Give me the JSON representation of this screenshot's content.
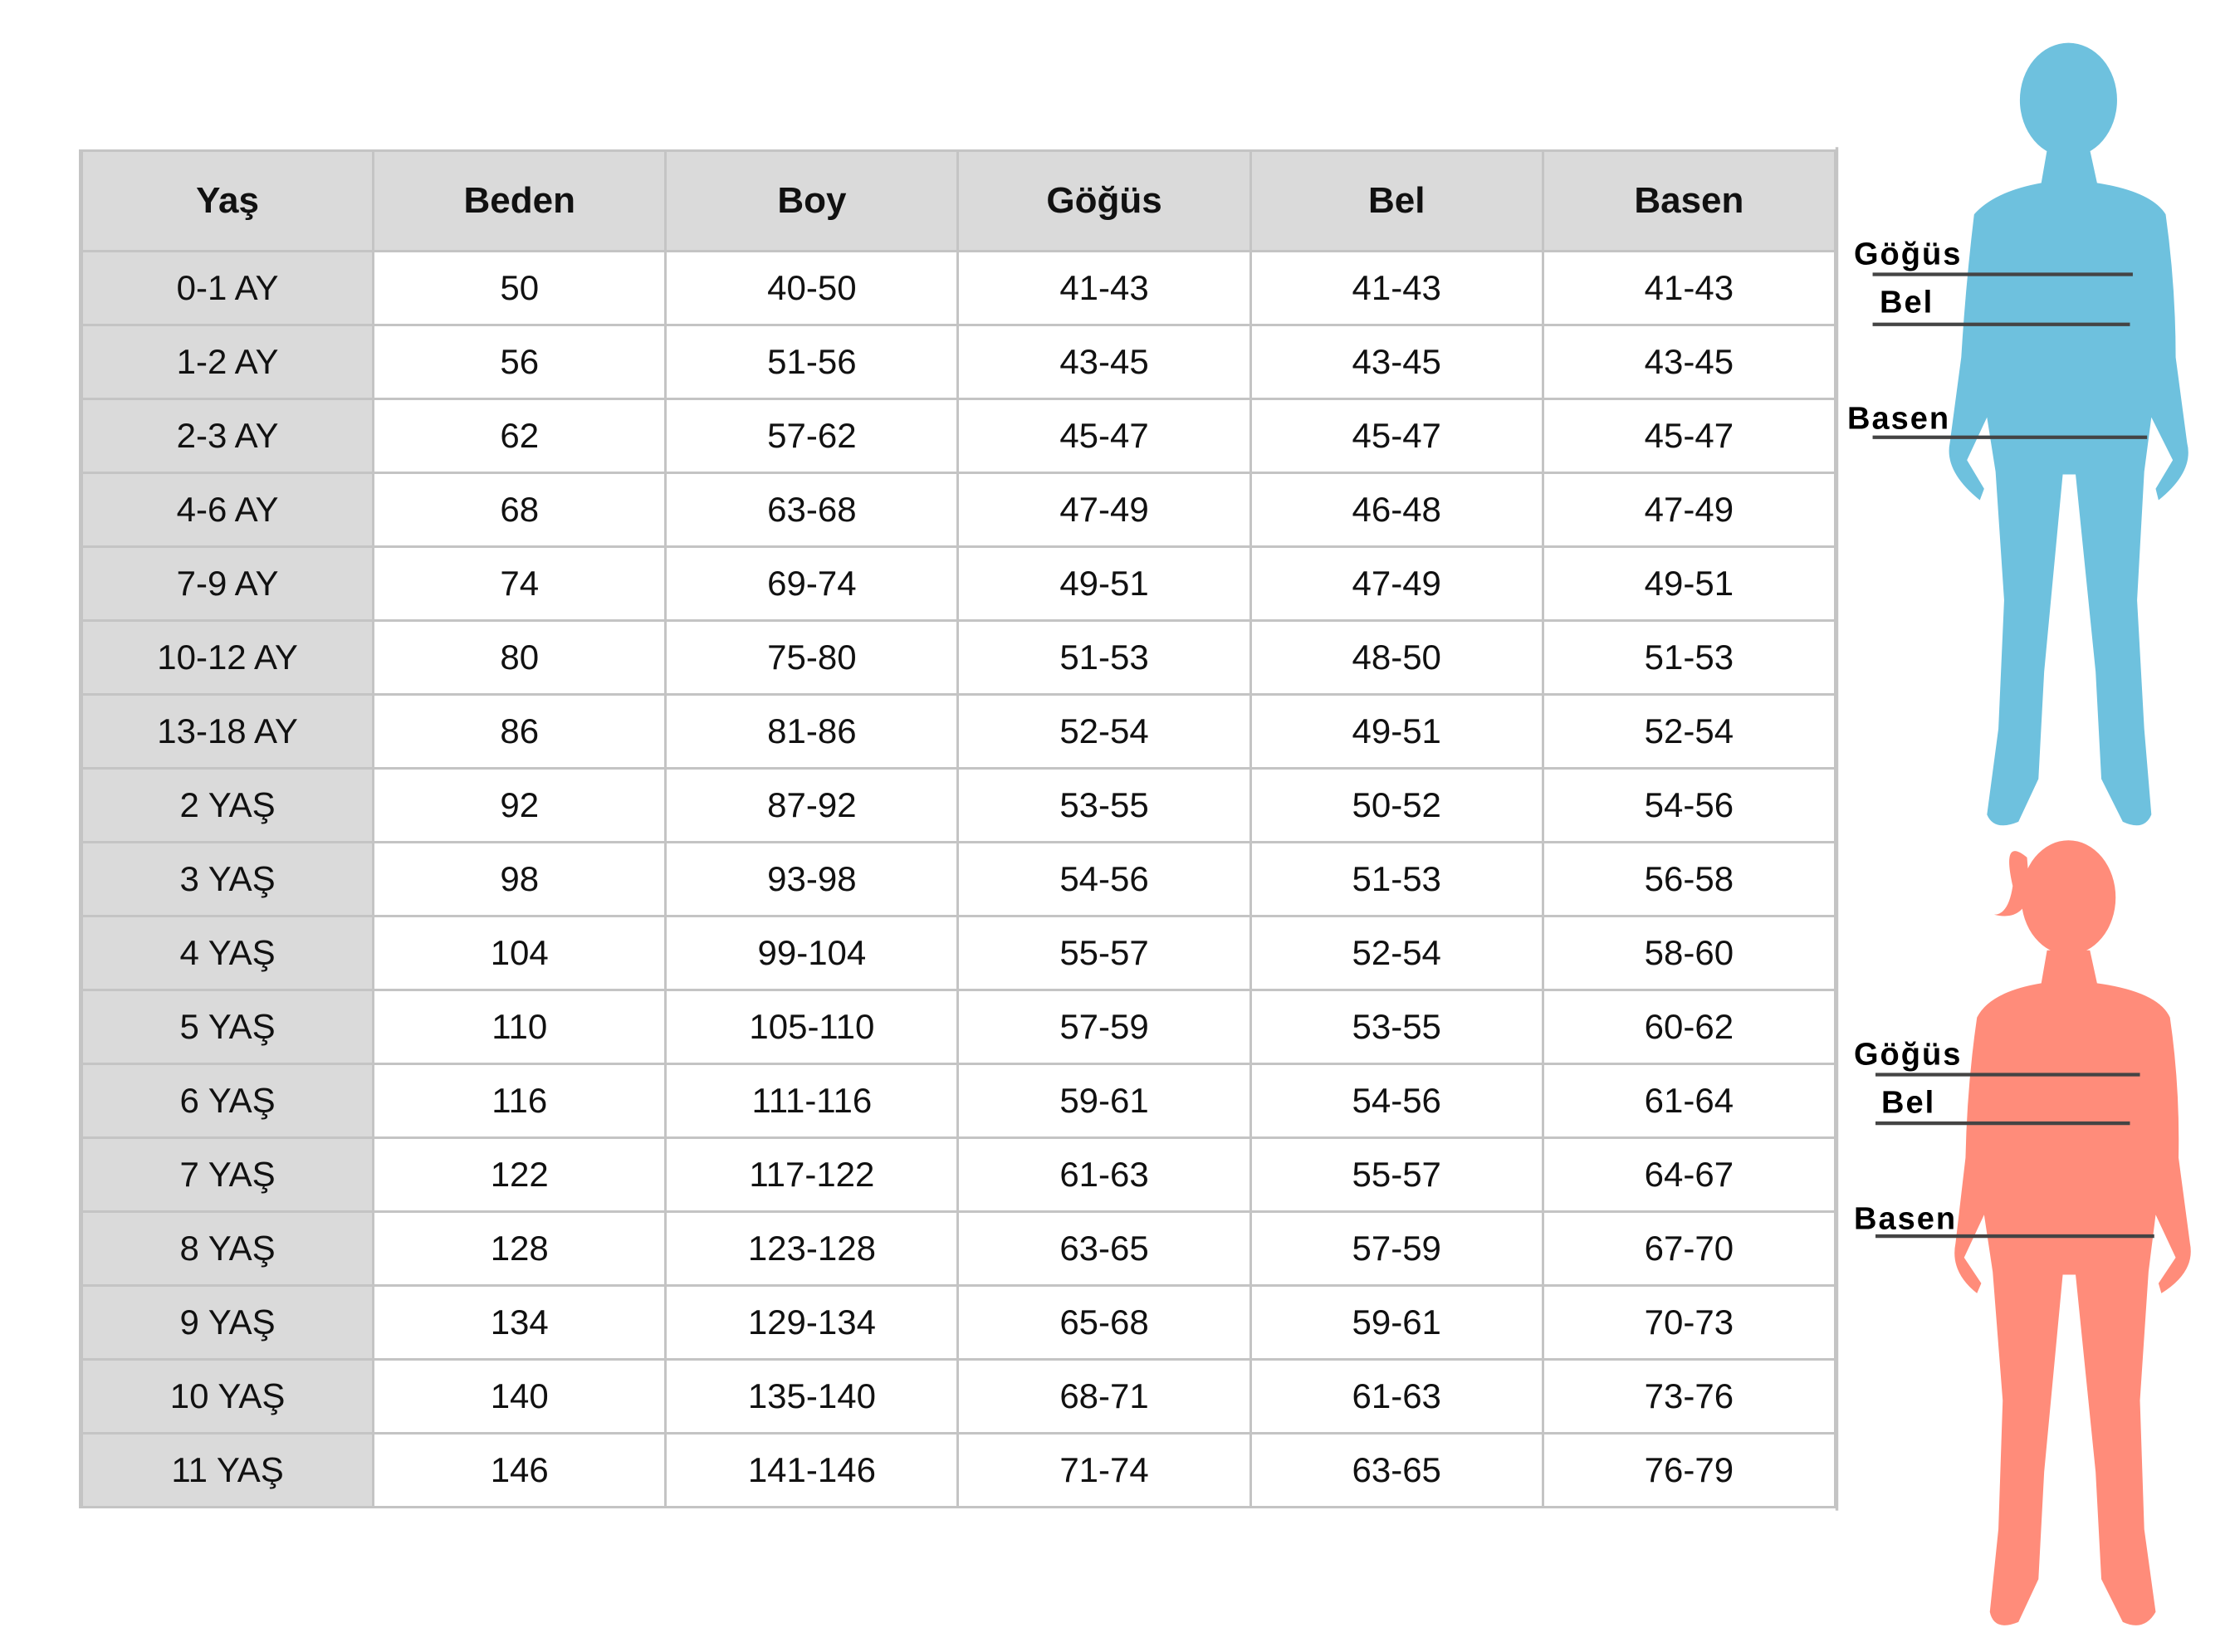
{
  "table": {
    "headers": [
      "Yaş",
      "Beden",
      "Boy",
      "Göğüs",
      "Bel",
      "Basen"
    ],
    "rows": [
      [
        "0-1 AY",
        "50",
        "40-50",
        "41-43",
        "41-43",
        "41-43"
      ],
      [
        "1-2 AY",
        "56",
        "51-56",
        "43-45",
        "43-45",
        "43-45"
      ],
      [
        "2-3 AY",
        "62",
        "57-62",
        "45-47",
        "45-47",
        "45-47"
      ],
      [
        "4-6 AY",
        "68",
        "63-68",
        "47-49",
        "46-48",
        "47-49"
      ],
      [
        "7-9 AY",
        "74",
        "69-74",
        "49-51",
        "47-49",
        "49-51"
      ],
      [
        "10-12 AY",
        "80",
        "75-80",
        "51-53",
        "48-50",
        "51-53"
      ],
      [
        "13-18 AY",
        "86",
        "81-86",
        "52-54",
        "49-51",
        "52-54"
      ],
      [
        "2 YAŞ",
        "92",
        "87-92",
        "53-55",
        "50-52",
        "54-56"
      ],
      [
        "3 YAŞ",
        "98",
        "93-98",
        "54-56",
        "51-53",
        "56-58"
      ],
      [
        "4 YAŞ",
        "104",
        "99-104",
        "55-57",
        "52-54",
        "58-60"
      ],
      [
        "5 YAŞ",
        "110",
        "105-110",
        "57-59",
        "53-55",
        "60-62"
      ],
      [
        "6 YAŞ",
        "116",
        "111-116",
        "59-61",
        "54-56",
        "61-64"
      ],
      [
        "7 YAŞ",
        "122",
        "117-122",
        "61-63",
        "55-57",
        "64-67"
      ],
      [
        "8 YAŞ",
        "128",
        "123-128",
        "63-65",
        "57-59",
        "67-70"
      ],
      [
        "9 YAŞ",
        "134",
        "129-134",
        "65-68",
        "59-61",
        "70-73"
      ],
      [
        "10 YAŞ",
        "140",
        "135-140",
        "68-71",
        "61-63",
        "73-76"
      ],
      [
        "11 YAŞ",
        "146",
        "141-146",
        "71-74",
        "63-65",
        "76-79"
      ]
    ]
  },
  "figures": {
    "boy": {
      "color": "#6ec1de",
      "labels": {
        "chest": "Göğüs",
        "waist": "Bel",
        "hip": "Basen"
      }
    },
    "girl": {
      "color": "#ff8c7a",
      "labels": {
        "chest": "Göğüs",
        "waist": "Bel",
        "hip": "Basen"
      }
    }
  }
}
